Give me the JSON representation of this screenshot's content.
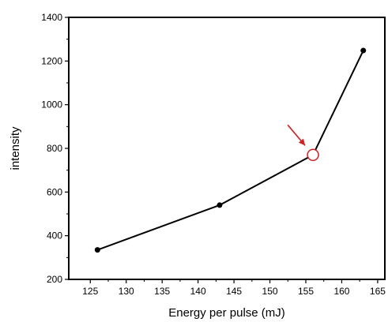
{
  "chart_data": {
    "type": "line",
    "title": "",
    "xlabel": "Energy per pulse (mJ)",
    "ylabel": "intensity",
    "xlim": [
      122,
      166
    ],
    "ylim": [
      200,
      1400
    ],
    "xticks": [
      125,
      130,
      135,
      140,
      145,
      150,
      155,
      160,
      165
    ],
    "yticks": [
      200,
      400,
      600,
      800,
      1000,
      1200,
      1400
    ],
    "grid": false,
    "legend": "none",
    "series": [
      {
        "x": [
          126,
          143,
          156,
          163
        ],
        "y": [
          335,
          540,
          770,
          1248
        ],
        "color": "#000000"
      }
    ],
    "annotations": [
      {
        "type": "open-circle-with-arrow",
        "x": 156,
        "y": 770,
        "color": "#cc2222"
      }
    ]
  }
}
